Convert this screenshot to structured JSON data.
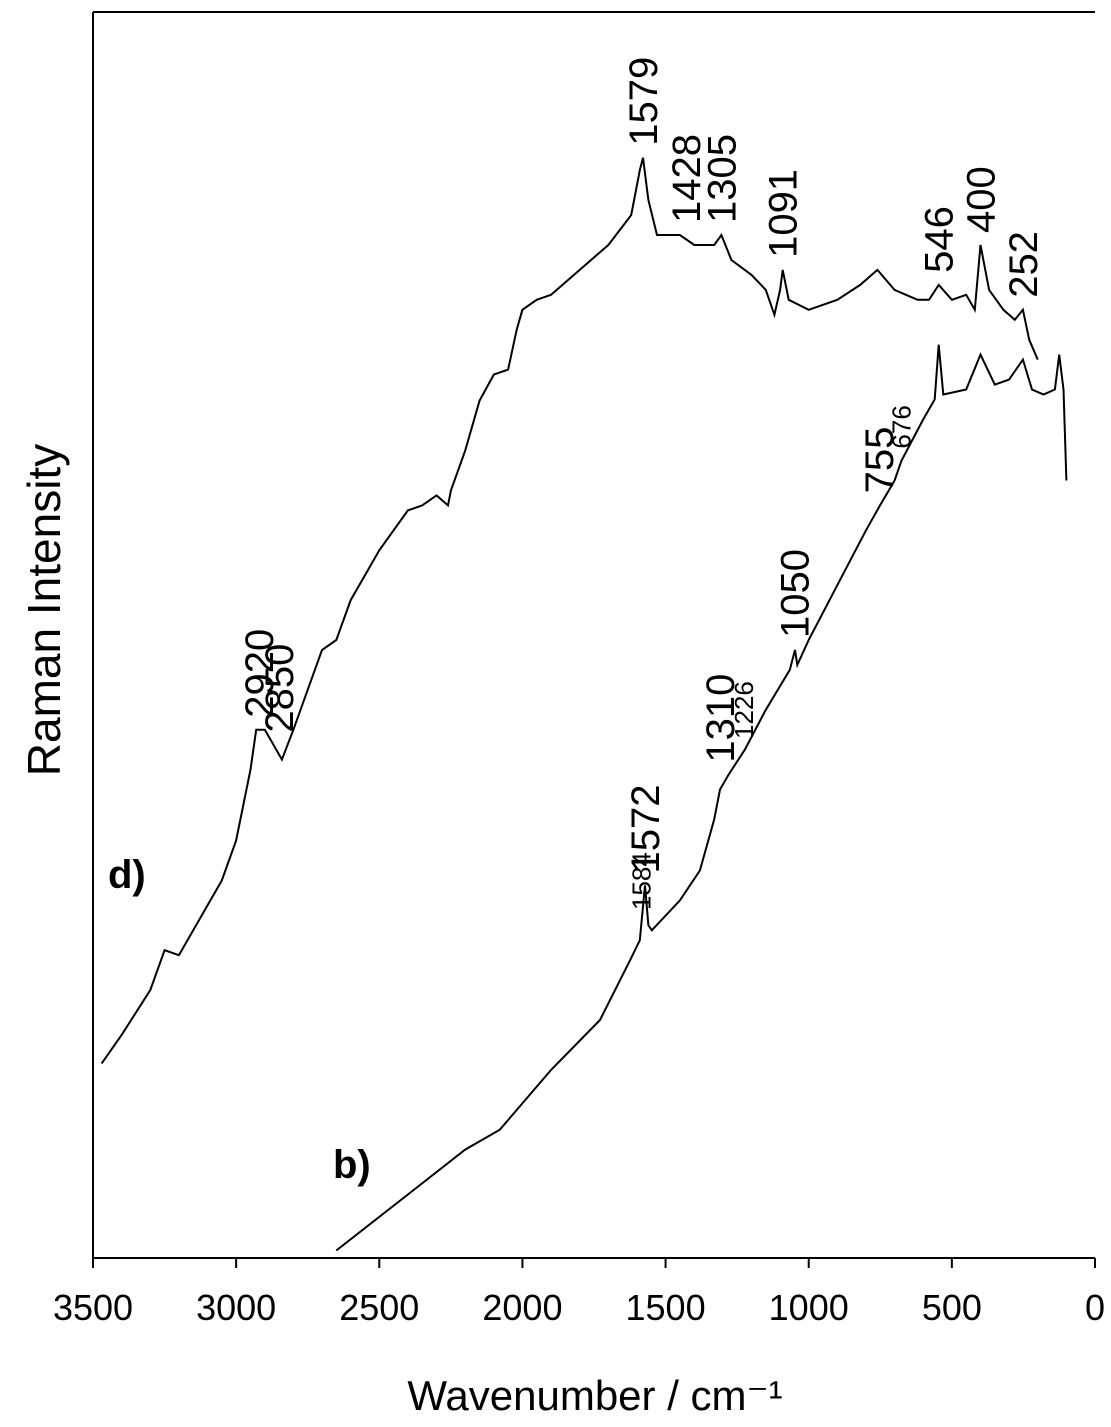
{
  "chart_data": {
    "type": "line",
    "xlabel": "Wavenumber / cm⁻¹",
    "ylabel": "Raman Intensity",
    "xlim": [
      3500,
      0
    ],
    "ylim": [
      0,
      100
    ],
    "xticks": [
      3500,
      3000,
      2500,
      2000,
      1500,
      1000,
      500,
      0
    ],
    "series": [
      {
        "name": "d)",
        "color": "#000000",
        "x": [
          3470,
          3400,
          3300,
          3250,
          3200,
          3100,
          3050,
          3000,
          2950,
          2930,
          2900,
          2870,
          2840,
          2800,
          2750,
          2700,
          2650,
          2600,
          2500,
          2450,
          2400,
          2350,
          2300,
          2260,
          2250,
          2200,
          2150,
          2100,
          2050,
          2020,
          2000,
          1950,
          1900,
          1800,
          1700,
          1620,
          1590,
          1579,
          1560,
          1530,
          1450,
          1400,
          1330,
          1305,
          1270,
          1200,
          1150,
          1120,
          1100,
          1091,
          1070,
          1000,
          900,
          820,
          760,
          700,
          620,
          580,
          546,
          500,
          450,
          420,
          400,
          370,
          320,
          280,
          252,
          230,
          200
        ],
        "values": [
          15.6,
          17.9,
          21.5,
          24.7,
          24.3,
          28.3,
          30.3,
          33.5,
          39.2,
          42.4,
          42.4,
          41.2,
          40.0,
          42.4,
          45.6,
          48.8,
          49.6,
          52.8,
          56.8,
          58.4,
          60.0,
          60.4,
          61.2,
          60.4,
          61.6,
          64.8,
          68.8,
          70.9,
          71.3,
          74.5,
          76.1,
          76.9,
          77.3,
          79.3,
          81.3,
          83.7,
          87.3,
          88.3,
          84.9,
          82.1,
          82.1,
          81.3,
          81.3,
          82.1,
          80.1,
          78.9,
          77.7,
          75.7,
          77.7,
          79.3,
          76.9,
          76.1,
          76.9,
          78.1,
          79.3,
          77.7,
          76.9,
          76.9,
          78.1,
          76.9,
          77.3,
          76.1,
          81.3,
          77.7,
          76.1,
          75.3,
          76.1,
          73.7,
          72.1
        ],
        "peak_labels": [
          "2920",
          "2850",
          "1579",
          "1428",
          "1305",
          "1091",
          "546",
          "400",
          "252"
        ],
        "minor_peak_labels": []
      },
      {
        "name": "b)",
        "color": "#000000",
        "x": [
          2650,
          2400,
          2200,
          2079,
          1900,
          1729,
          1624,
          1590,
          1572,
          1560,
          1548,
          1450,
          1380,
          1330,
          1310,
          1280,
          1223,
          1150,
          1066,
          1048,
          1040,
          1000,
          900,
          800,
          751,
          700,
          676,
          600,
          560,
          546,
          530,
          450,
          400,
          350,
          300,
          252,
          220,
          180,
          140,
          125,
          110,
          100
        ],
        "values": [
          0.6,
          5.1,
          8.7,
          10.3,
          15.1,
          19.1,
          23.9,
          25.5,
          29.9,
          26.7,
          26.3,
          28.7,
          31.1,
          35.2,
          37.6,
          38.8,
          40.8,
          44.0,
          47.2,
          48.8,
          47.6,
          49.6,
          54.0,
          58.4,
          60.4,
          62.4,
          64.0,
          67.3,
          68.9,
          73.3,
          69.3,
          69.7,
          72.5,
          70.1,
          70.5,
          72.1,
          69.7,
          69.3,
          69.7,
          72.5,
          69.7,
          62.4
        ],
        "peak_labels": [
          "1572",
          "1310",
          "1050",
          "755"
        ],
        "minor_peak_labels": [
          "1584",
          "1226",
          "676"
        ]
      }
    ]
  }
}
